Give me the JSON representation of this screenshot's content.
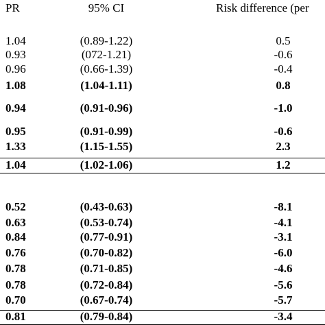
{
  "table": {
    "header": [
      "PR",
      "95% CI",
      "Risk difference (per"
    ],
    "rows": [
      {
        "cells": [
          "1.04",
          "(0.89-1.22)",
          "0.5"
        ],
        "bold": false
      },
      {
        "cells": [
          "0.93",
          "(072-1.21)",
          "-0.6"
        ],
        "bold": false
      },
      {
        "cells": [
          "0.96",
          "(0.66-1.39)",
          "-0.4"
        ],
        "bold": false
      },
      {
        "cells": [
          "1.08",
          "(1.04-1.11)",
          "0.8"
        ],
        "bold": true
      },
      {
        "cells": [
          "0.94",
          "(0.91-0.96)",
          "-1.0"
        ],
        "bold": true
      },
      {
        "cells": [
          "0.95",
          "(0.91-0.99)",
          "-0.6"
        ],
        "bold": true
      },
      {
        "cells": [
          "1.33",
          "(1.15-1.55)",
          "2.3"
        ],
        "bold": true
      },
      {
        "cells": [
          "1.04",
          "(1.02-1.06)",
          "1.2"
        ],
        "bold": true
      },
      {
        "cells": [
          "0.52",
          "(0.43-0.63)",
          "-8.1"
        ],
        "bold": true
      },
      {
        "cells": [
          "0.63",
          "(0.53-0.74)",
          "-4.1"
        ],
        "bold": true
      },
      {
        "cells": [
          "0.84",
          "(0.77-0.91)",
          "-3.1"
        ],
        "bold": true
      },
      {
        "cells": [
          "0.76",
          "(0.70-0.82)",
          "-6.0"
        ],
        "bold": true
      },
      {
        "cells": [
          "0.78",
          "(0.71-0.85)",
          "-4.6"
        ],
        "bold": true
      },
      {
        "cells": [
          "0.78",
          "(0.72-0.84)",
          "-5.6"
        ],
        "bold": true
      },
      {
        "cells": [
          "0.70",
          "(0.67-0.74)",
          "-5.7"
        ],
        "bold": true
      },
      {
        "cells": [
          "0.81",
          "(0.79-0.84)",
          "-3.4"
        ],
        "bold": true
      }
    ]
  }
}
